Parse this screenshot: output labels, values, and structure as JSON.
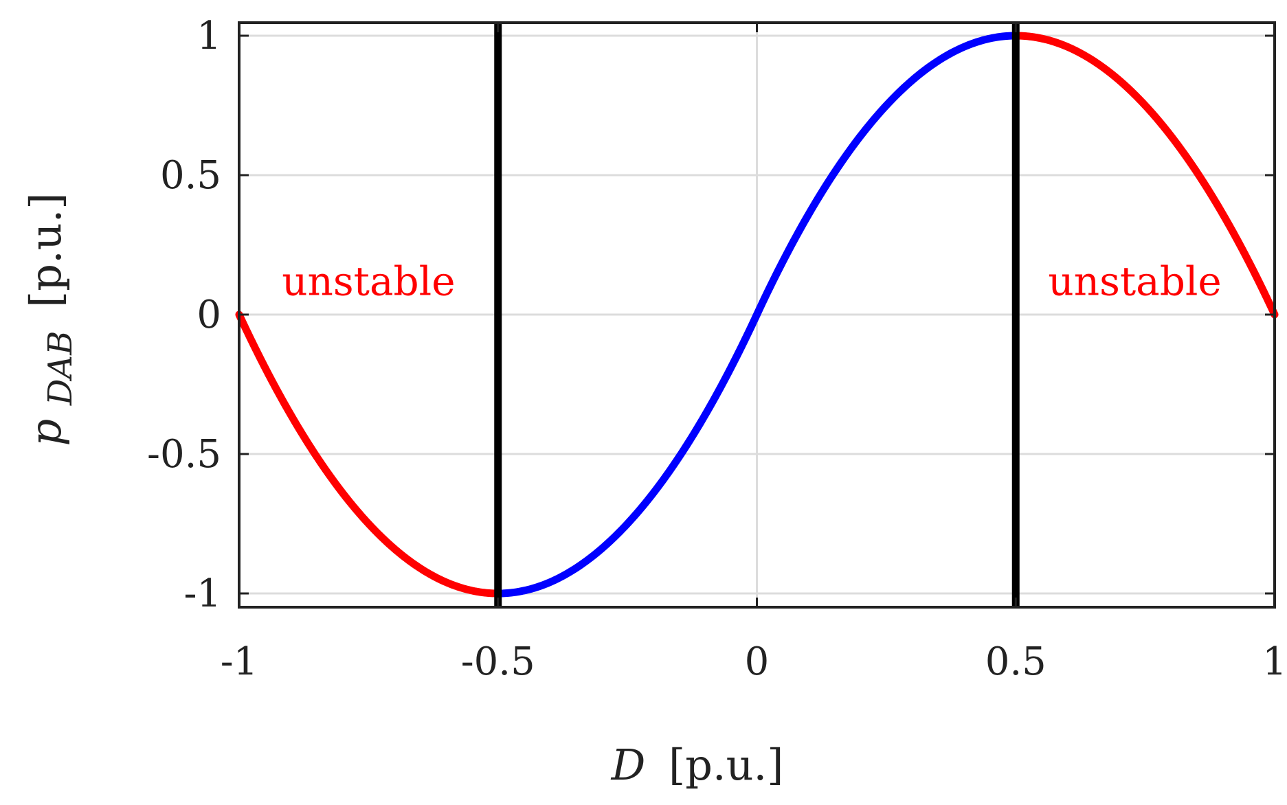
{
  "chart_data": {
    "type": "line",
    "xlabel": {
      "main": "D",
      "unit": "[p.u.]"
    },
    "ylabel": {
      "main": "p",
      "subscript": "DAB",
      "unit": "[p.u.]"
    },
    "xlim": [
      -1,
      1
    ],
    "ylim": [
      -1,
      1
    ],
    "xticks": [
      -1,
      -0.5,
      0,
      0.5,
      1
    ],
    "yticks": [
      -1,
      -0.5,
      0,
      0.5,
      1
    ],
    "xtick_labels": [
      "-1",
      "-0.5",
      "0",
      "0.5",
      "1"
    ],
    "ytick_labels": [
      "-1",
      "-0.5",
      "0",
      "0.5",
      "1"
    ],
    "grid": true,
    "function": "p = 4·D·(1 − |D|)",
    "series": [
      {
        "color": "#ff0000",
        "x": [
          -1,
          -0.9,
          -0.8,
          -0.7,
          -0.6,
          -0.5
        ],
        "y": [
          0,
          -0.36,
          -0.64,
          -0.84,
          -0.96,
          -1
        ]
      },
      {
        "color": "#0000ff",
        "x": [
          -0.5,
          -0.4,
          -0.3,
          -0.2,
          -0.1,
          0,
          0.1,
          0.2,
          0.3,
          0.4,
          0.5
        ],
        "y": [
          -1,
          -0.96,
          -0.84,
          -0.64,
          -0.36,
          0,
          0.36,
          0.64,
          0.84,
          0.96,
          1
        ]
      },
      {
        "color": "#ff0000",
        "x": [
          0.5,
          0.6,
          0.7,
          0.8,
          0.9,
          1
        ],
        "y": [
          1,
          0.96,
          0.84,
          0.64,
          0.36,
          0
        ]
      }
    ],
    "vertical_lines": [
      {
        "x": -0.5,
        "color": "#000000"
      },
      {
        "x": 0.5,
        "color": "#000000"
      }
    ],
    "annotations": [
      {
        "text": "unstable",
        "x": -0.75,
        "y": 0.12,
        "color": "#ff0000"
      },
      {
        "text": "unstable",
        "x": 0.73,
        "y": 0.12,
        "color": "#ff0000"
      }
    ]
  }
}
